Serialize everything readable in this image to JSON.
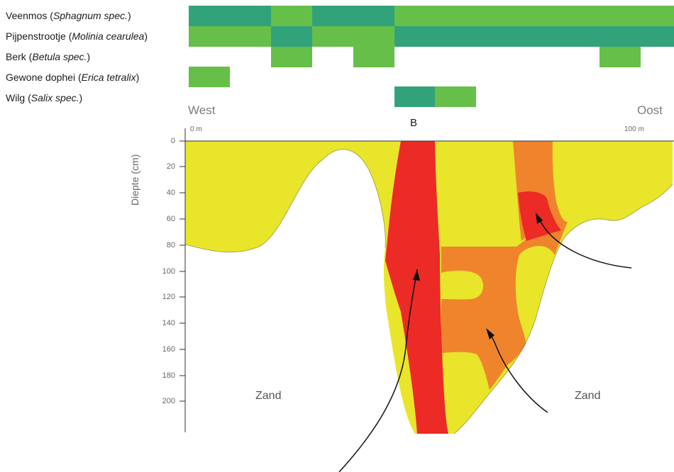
{
  "species": [
    {
      "name": "Veenmos",
      "latin": "Sphagnum spec."
    },
    {
      "name": "Pijpenstrootje",
      "latin": "Molinia cearulea"
    },
    {
      "name": "Berk",
      "latin": "Betula spec."
    },
    {
      "name": "Gewone dophei",
      "latin": "Erica tetralix"
    },
    {
      "name": "Wilg",
      "latin": "Salix spec."
    }
  ],
  "presence_colors": {
    "present": "#66bf48",
    "abundant": "#32a27a"
  },
  "profile": {
    "west_label": "West",
    "east_label": "Oost",
    "start_label": "0 m",
    "end_label": "100 m",
    "marker_label": "B",
    "y_axis_label": "Diepte (cm)",
    "y_ticks": [
      "0",
      "20",
      "40",
      "60",
      "80",
      "100",
      "120",
      "140",
      "160",
      "180",
      "200"
    ],
    "zand_left": "Zand",
    "zand_right": "Zand"
  },
  "layer_colors": {
    "yellow": "#e8e52b",
    "orange": "#f0842c",
    "red": "#ec2a26"
  }
}
